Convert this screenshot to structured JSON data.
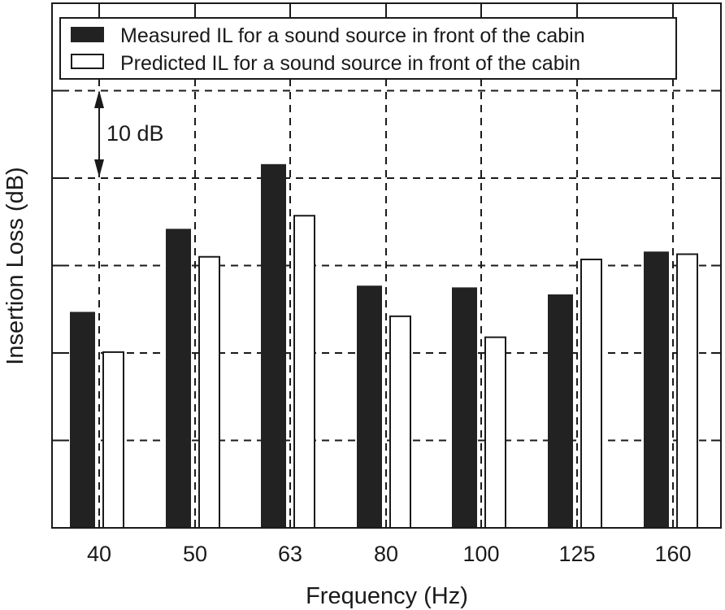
{
  "chart_data": {
    "type": "bar",
    "title": "",
    "xlabel": "Frequency (Hz)",
    "ylabel": "Insertion Loss (dB)",
    "categories": [
      "40",
      "50",
      "63",
      "80",
      "100",
      "125",
      "160"
    ],
    "series": [
      {
        "name": "Measured IL for a sound source in front of the cabin",
        "color": "#222222",
        "fill": "solid",
        "values": [
          24.7,
          34.2,
          41.6,
          27.7,
          27.5,
          26.7,
          31.6
        ]
      },
      {
        "name": "Predicted IL for a sound source in front of the cabin",
        "color": "#ffffff",
        "fill": "outline",
        "values": [
          20.1,
          31.0,
          35.7,
          24.2,
          21.8,
          30.7,
          31.3
        ]
      }
    ],
    "ylim": [
      0,
      60
    ],
    "y_units_note": "Y axis has no numeric tick labels; values are relative, estimated using the 10 dB scale annotation with the plot bottom as 0.",
    "grid": true,
    "grid_style": "dashed",
    "grid_step": 10,
    "legend_position": "top",
    "annotations": [
      {
        "text": "10 dB",
        "type": "double-arrow",
        "from_y": 50,
        "to_y": 40
      }
    ]
  },
  "legend": {
    "items": [
      {
        "label": "Measured IL for a sound source in front of the cabin"
      },
      {
        "label": "Predicted IL for a sound source in front of the cabin"
      }
    ]
  },
  "axes": {
    "xlabel": "Frequency (Hz)",
    "ylabel": "Insertion Loss (dB)"
  },
  "annotation": {
    "scale_label": "10 dB"
  }
}
